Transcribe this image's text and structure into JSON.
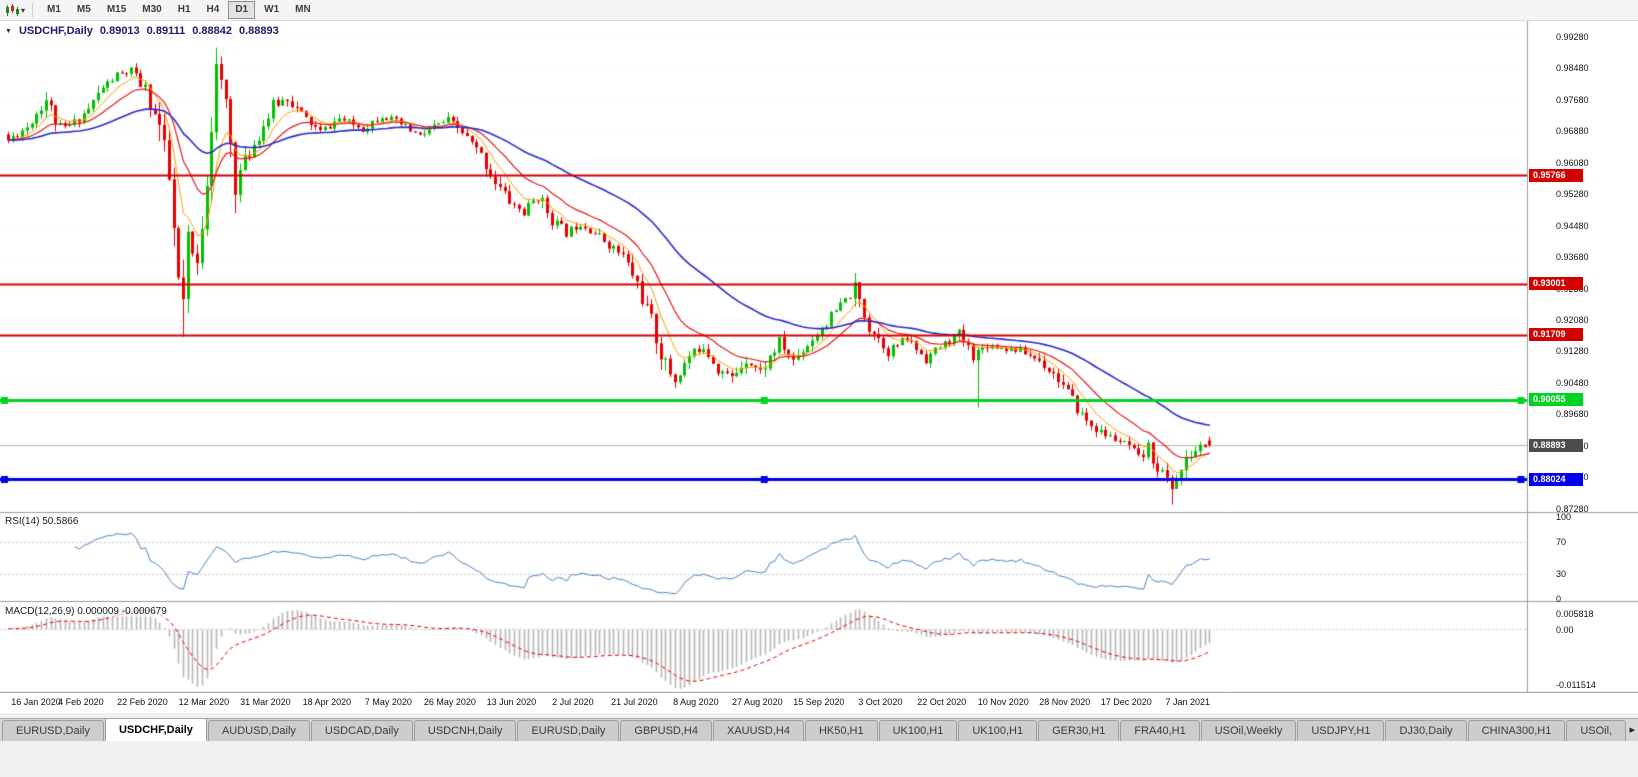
{
  "toolbar": {
    "chart_type_icon": "candlestick-chart",
    "dropdown_icon": "▾",
    "timeframes": [
      "M1",
      "M5",
      "M15",
      "M30",
      "H1",
      "H4",
      "D1",
      "W1",
      "MN"
    ],
    "active_timeframe": "D1"
  },
  "chart": {
    "title": {
      "collapse_icon": "▼",
      "symbol_period": "USDCHF,Daily",
      "open": "0.89013",
      "high": "0.89111",
      "low": "0.88842",
      "close": "0.88893"
    },
    "price_axis_ticks": [
      "0.99280",
      "0.98480",
      "0.97680",
      "0.96880",
      "0.96080",
      "0.95280",
      "0.94480",
      "0.93680",
      "0.92880",
      "0.92080",
      "0.91280",
      "0.90480",
      "0.89680",
      "0.88880",
      "0.88080",
      "0.87280"
    ],
    "hlines": [
      {
        "value": 0.95766,
        "label": "0.95766",
        "color": "#d40000",
        "width": 2,
        "selected": false
      },
      {
        "value": 0.93001,
        "label": "0.93001",
        "color": "#d40000",
        "width": 2,
        "selected": false
      },
      {
        "value": 0.91709,
        "label": "0.91709",
        "color": "#d40000",
        "width": 2,
        "selected": false
      },
      {
        "value": 0.90055,
        "label": "0.90055",
        "color": "#00d422",
        "width": 3,
        "selected": true
      },
      {
        "value": 0.88024,
        "label": "0.88024",
        "color": "#0000ee",
        "width": 3,
        "selected": true
      }
    ],
    "current_price": {
      "value": 0.88893,
      "label": "0.88893",
      "badge_color": "#4d4d4d",
      "line_color": "#b8b8b8"
    },
    "colors": {
      "bull": "#00c000",
      "bear": "#e80000",
      "rsi_line": "#4a86c8",
      "macd_histogram": "#b6b6b6",
      "macd_signal": "#e80000",
      "grid": "#ededed",
      "separator": "#9b9b9b"
    }
  },
  "rsi": {
    "header": "RSI(14) 50.5866",
    "period": 14,
    "last_value": 50.5866,
    "levels": [
      "100",
      "70",
      "30",
      "0"
    ],
    "levels_values": [
      100,
      70,
      30,
      0
    ],
    "levels_dotted": [
      70,
      30
    ]
  },
  "macd": {
    "header": "MACD(12,26,9) 0.000009 -0.000679",
    "axis_labels": [
      "0.005818",
      "0.00",
      "-0.011514"
    ]
  },
  "date_axis": {
    "labels": [
      "16 Jan 2020",
      "4 Feb 2020",
      "22 Feb 2020",
      "12 Mar 2020",
      "31 Mar 2020",
      "18 Apr 2020",
      "7 May 2020",
      "26 May 2020",
      "13 Jun 2020",
      "2 Jul 2020",
      "21 Jul 2020",
      "8 Aug 2020",
      "27 Aug 2020",
      "15 Sep 2020",
      "3 Oct 2020",
      "22 Oct 2020",
      "10 Nov 2020",
      "28 Nov 2020",
      "17 Dec 2020",
      "7 Jan 2021"
    ]
  },
  "tabs": {
    "items": [
      "EURUSD,Daily",
      "USDCHF,Daily",
      "AUDUSD,Daily",
      "USDCAD,Daily",
      "USDCNH,Daily",
      "EURUSD,Daily",
      "GBPUSD,H4",
      "XAUUSD,H4",
      "HK50,H1",
      "UK100,H1",
      "UK100,H1",
      "GER30,H1",
      "FRA40,H1",
      "USOil,Weekly",
      "USDJPY,H1",
      "DJ30,Daily",
      "CHINA300,H1",
      "USOil,"
    ],
    "active_index": 1,
    "scroll_icon": "▸"
  },
  "chart_data": {
    "type": "candlestick",
    "symbol": "USDCHF",
    "period": "Daily",
    "title": "USDCHF,Daily",
    "x_range": [
      "16 Jan 2020",
      "Jan 2021"
    ],
    "y_range": [
      0.8728,
      0.9928
    ],
    "candle_count": 255,
    "last_ohlc": {
      "open": 0.89013,
      "high": 0.89111,
      "low": 0.88842,
      "close": 0.88893
    },
    "close_keypoints": [
      [
        0,
        0.9665
      ],
      [
        4,
        0.97
      ],
      [
        8,
        0.977
      ],
      [
        11,
        0.969
      ],
      [
        14,
        0.971
      ],
      [
        17,
        0.9745
      ],
      [
        20,
        0.98
      ],
      [
        23,
        0.983
      ],
      [
        26,
        0.984
      ],
      [
        29,
        0.979
      ],
      [
        32,
        0.97
      ],
      [
        34,
        0.956
      ],
      [
        36,
        0.93
      ],
      [
        37,
        0.925
      ],
      [
        38,
        0.94
      ],
      [
        40,
        0.934
      ],
      [
        42,
        0.958
      ],
      [
        44,
        0.984
      ],
      [
        46,
        0.976
      ],
      [
        48,
        0.956
      ],
      [
        50,
        0.961
      ],
      [
        53,
        0.968
      ],
      [
        56,
        0.975
      ],
      [
        59,
        0.9775
      ],
      [
        62,
        0.973
      ],
      [
        66,
        0.9685
      ],
      [
        70,
        0.972
      ],
      [
        75,
        0.9695
      ],
      [
        79,
        0.973
      ],
      [
        83,
        0.9705
      ],
      [
        87,
        0.9675
      ],
      [
        90,
        0.97
      ],
      [
        93,
        0.9715
      ],
      [
        96,
        0.9685
      ],
      [
        100,
        0.9625
      ],
      [
        103,
        0.956
      ],
      [
        106,
        0.951
      ],
      [
        109,
        0.948
      ],
      [
        112,
        0.9525
      ],
      [
        115,
        0.9465
      ],
      [
        118,
        0.943
      ],
      [
        121,
        0.9455
      ],
      [
        124,
        0.943
      ],
      [
        127,
        0.94
      ],
      [
        130,
        0.937
      ],
      [
        133,
        0.93
      ],
      [
        136,
        0.92
      ],
      [
        139,
        0.909
      ],
      [
        141,
        0.9055
      ],
      [
        144,
        0.9115
      ],
      [
        147,
        0.9145
      ],
      [
        150,
        0.9085
      ],
      [
        153,
        0.906
      ],
      [
        156,
        0.911
      ],
      [
        159,
        0.9075
      ],
      [
        163,
        0.915
      ],
      [
        166,
        0.9105
      ],
      [
        170,
        0.916
      ],
      [
        175,
        0.923
      ],
      [
        179,
        0.9285
      ],
      [
        182,
        0.9195
      ],
      [
        186,
        0.913
      ],
      [
        190,
        0.916
      ],
      [
        194,
        0.911
      ],
      [
        197,
        0.914
      ],
      [
        201,
        0.917
      ],
      [
        204,
        0.912
      ],
      [
        207,
        0.9145
      ],
      [
        211,
        0.9135
      ],
      [
        214,
        0.913
      ],
      [
        218,
        0.9105
      ],
      [
        222,
        0.906
      ],
      [
        225,
        0.9
      ],
      [
        228,
        0.895
      ],
      [
        231,
        0.892
      ],
      [
        234,
        0.8905
      ],
      [
        237,
        0.8885
      ],
      [
        239,
        0.885
      ],
      [
        241,
        0.888
      ],
      [
        243,
        0.8835
      ],
      [
        246,
        0.8785
      ],
      [
        248,
        0.8825
      ],
      [
        250,
        0.8865
      ],
      [
        252,
        0.8885
      ],
      [
        254,
        0.8889
      ]
    ],
    "extremes": [
      {
        "i": 26,
        "high": 0.985
      },
      {
        "i": 37,
        "low": 0.9165
      },
      {
        "i": 44,
        "high": 0.9901
      },
      {
        "i": 141,
        "low": 0.9035
      },
      {
        "i": 180,
        "high": 0.93
      },
      {
        "i": 205,
        "low": 0.8985
      },
      {
        "i": 246,
        "low": 0.8738
      }
    ],
    "moving_averages": [
      {
        "name": "fast",
        "method": "ema",
        "period": 7,
        "color": "#ff9d00",
        "width": 1
      },
      {
        "name": "medium",
        "method": "ema",
        "period": 16,
        "color": "#e81c1c",
        "width": 1.2
      },
      {
        "name": "slow",
        "method": "ema",
        "period": 45,
        "color": "#2b2bcc",
        "width": 1.6
      }
    ],
    "hlines": [
      0.95766,
      0.93001,
      0.91709,
      0.90055,
      0.88024
    ],
    "indicators": [
      {
        "name": "RSI",
        "params": [
          14
        ],
        "last_value": 50.5866,
        "levels": [
          70,
          30
        ]
      },
      {
        "name": "MACD",
        "params": [
          12,
          26,
          9
        ],
        "last_values": [
          9e-06,
          -0.000679
        ]
      }
    ]
  }
}
